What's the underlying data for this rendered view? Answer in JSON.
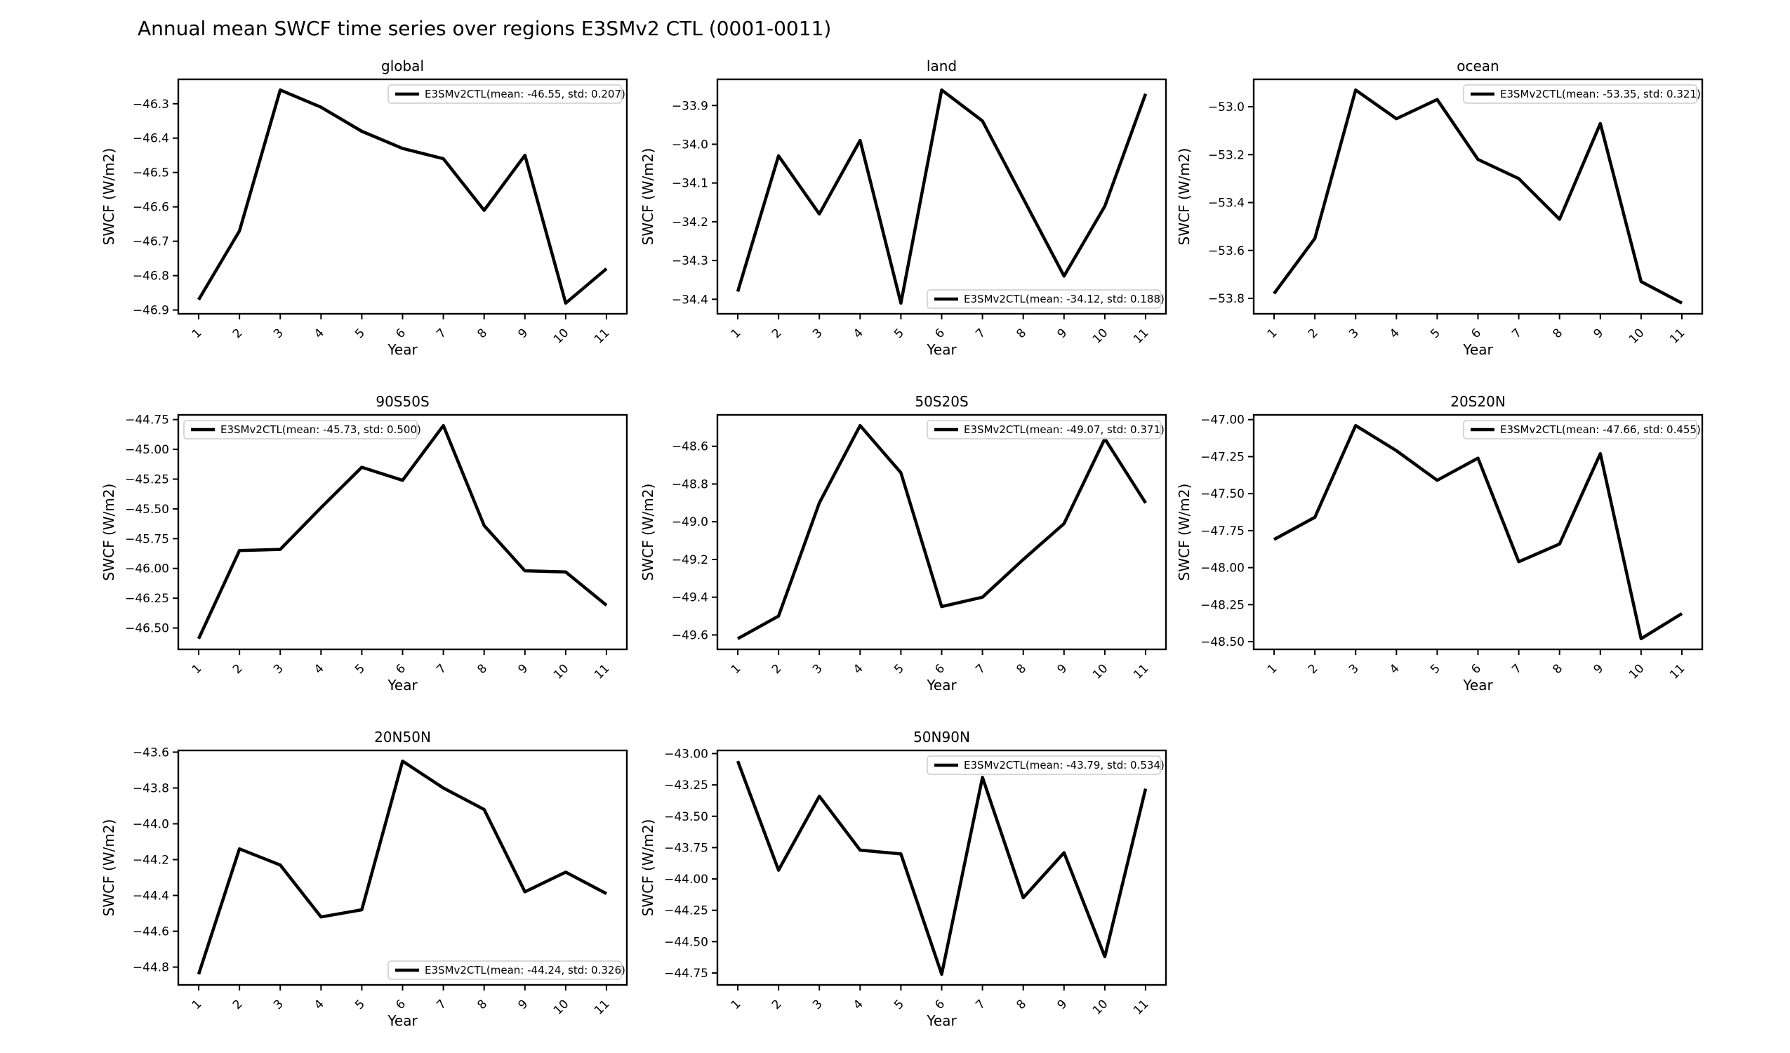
{
  "figure": {
    "suptitle": "Annual mean SWCF time series over regions E3SMv2 CTL (0001-0011)",
    "series_name": "E3SMv2CTL",
    "line_color": "#000000",
    "axis_color": "#000000",
    "tick_label_color": "#000000",
    "legend_border_color": "#cccccc",
    "legend_background": "#ffffff",
    "background_color": "#ffffff"
  },
  "chart_data": [
    {
      "type": "line",
      "title": "global",
      "xlabel": "Year",
      "ylabel": "SWCF (W/m2)",
      "x": [
        1,
        2,
        3,
        4,
        5,
        6,
        7,
        8,
        9,
        10,
        11
      ],
      "xtick_labels": [
        "1",
        "2",
        "3",
        "4",
        "5",
        "6",
        "7",
        "8",
        "9",
        "10",
        "11"
      ],
      "values": [
        -46.87,
        -46.67,
        -46.26,
        -46.31,
        -46.38,
        -46.43,
        -46.46,
        -46.61,
        -46.45,
        -46.88,
        -46.78
      ],
      "mean": -46.55,
      "std": 0.207,
      "legend": {
        "label": "E3SMv2CTL(mean: -46.55, std: 0.207)",
        "position": "top-right"
      },
      "ytick_values": [
        -46.9,
        -46.8,
        -46.7,
        -46.6,
        -46.5,
        -46.4,
        -46.3
      ],
      "ytick_labels": [
        "−46.9",
        "−46.8",
        "−46.7",
        "−46.6",
        "−46.5",
        "−46.4",
        "−46.3"
      ],
      "grid": {
        "row": 0,
        "col": 0
      }
    },
    {
      "type": "line",
      "title": "land",
      "xlabel": "Year",
      "ylabel": "SWCF (W/m2)",
      "x": [
        1,
        2,
        3,
        4,
        5,
        6,
        7,
        8,
        9,
        10,
        11
      ],
      "xtick_labels": [
        "1",
        "2",
        "3",
        "4",
        "5",
        "6",
        "7",
        "8",
        "9",
        "10",
        "11"
      ],
      "values": [
        -34.38,
        -34.03,
        -34.18,
        -33.99,
        -34.41,
        -33.86,
        -33.94,
        -34.14,
        -34.34,
        -34.16,
        -33.87
      ],
      "mean": -34.12,
      "std": 0.188,
      "legend": {
        "label": "E3SMv2CTL(mean: -34.12, std: 0.188)",
        "position": "bottom-right"
      },
      "ytick_values": [
        -34.4,
        -34.3,
        -34.2,
        -34.1,
        -34.0,
        -33.9
      ],
      "ytick_labels": [
        "−34.4",
        "−34.3",
        "−34.2",
        "−34.1",
        "−34.0",
        "−33.9"
      ],
      "grid": {
        "row": 0,
        "col": 1
      }
    },
    {
      "type": "line",
      "title": "ocean",
      "xlabel": "Year",
      "ylabel": "SWCF (W/m2)",
      "x": [
        1,
        2,
        3,
        4,
        5,
        6,
        7,
        8,
        9,
        10,
        11
      ],
      "xtick_labels": [
        "1",
        "2",
        "3",
        "4",
        "5",
        "6",
        "7",
        "8",
        "9",
        "10",
        "11"
      ],
      "values": [
        -53.78,
        -53.55,
        -52.93,
        -53.05,
        -52.97,
        -53.22,
        -53.3,
        -53.47,
        -53.07,
        -53.73,
        -53.82
      ],
      "mean": -53.35,
      "std": 0.321,
      "legend": {
        "label": "E3SMv2CTL(mean: -53.35, std: 0.321)",
        "position": "top-right"
      },
      "ytick_values": [
        -53.8,
        -53.6,
        -53.4,
        -53.2,
        -53.0
      ],
      "ytick_labels": [
        "−53.8",
        "−53.6",
        "−53.4",
        "−53.2",
        "−53.0"
      ],
      "grid": {
        "row": 0,
        "col": 2
      }
    },
    {
      "type": "line",
      "title": "90S50S",
      "xlabel": "Year",
      "ylabel": "SWCF (W/m2)",
      "x": [
        1,
        2,
        3,
        4,
        5,
        6,
        7,
        8,
        9,
        10,
        11
      ],
      "xtick_labels": [
        "1",
        "2",
        "3",
        "4",
        "5",
        "6",
        "7",
        "8",
        "9",
        "10",
        "11"
      ],
      "values": [
        -46.59,
        -45.85,
        -45.84,
        -45.49,
        -45.15,
        -45.26,
        -44.8,
        -45.64,
        -46.02,
        -46.03,
        -46.31
      ],
      "mean": -45.73,
      "std": 0.5,
      "legend": {
        "label": "E3SMv2CTL(mean: -45.73, std: 0.500)",
        "position": "top-left"
      },
      "ytick_values": [
        -46.5,
        -46.25,
        -46.0,
        -45.75,
        -45.5,
        -45.25,
        -45.0,
        -44.75
      ],
      "ytick_labels": [
        "−46.50",
        "−46.25",
        "−46.00",
        "−45.75",
        "−45.50",
        "−45.25",
        "−45.00",
        "−44.75"
      ],
      "grid": {
        "row": 1,
        "col": 0
      }
    },
    {
      "type": "line",
      "title": "50S20S",
      "xlabel": "Year",
      "ylabel": "SWCF (W/m2)",
      "x": [
        1,
        2,
        3,
        4,
        5,
        6,
        7,
        8,
        9,
        10,
        11
      ],
      "xtick_labels": [
        "1",
        "2",
        "3",
        "4",
        "5",
        "6",
        "7",
        "8",
        "9",
        "10",
        "11"
      ],
      "values": [
        -49.62,
        -49.5,
        -48.9,
        -48.49,
        -48.74,
        -49.45,
        -49.4,
        -49.2,
        -49.01,
        -48.56,
        -48.9
      ],
      "mean": -49.07,
      "std": 0.371,
      "legend": {
        "label": "E3SMv2CTL(mean: -49.07, std: 0.371)",
        "position": "top-right"
      },
      "ytick_values": [
        -49.6,
        -49.4,
        -49.2,
        -49.0,
        -48.8,
        -48.6
      ],
      "ytick_labels": [
        "−49.6",
        "−49.4",
        "−49.2",
        "−49.0",
        "−48.8",
        "−48.6"
      ],
      "grid": {
        "row": 1,
        "col": 1
      }
    },
    {
      "type": "line",
      "title": "20S20N",
      "xlabel": "Year",
      "ylabel": "SWCF (W/m2)",
      "x": [
        1,
        2,
        3,
        4,
        5,
        6,
        7,
        8,
        9,
        10,
        11
      ],
      "xtick_labels": [
        "1",
        "2",
        "3",
        "4",
        "5",
        "6",
        "7",
        "8",
        "9",
        "10",
        "11"
      ],
      "values": [
        -47.81,
        -47.66,
        -47.04,
        -47.21,
        -47.41,
        -47.26,
        -47.96,
        -47.84,
        -47.23,
        -48.48,
        -48.31
      ],
      "mean": -47.66,
      "std": 0.455,
      "legend": {
        "label": "E3SMv2CTL(mean: -47.66, std: 0.455)",
        "position": "top-right"
      },
      "ytick_values": [
        -48.5,
        -48.25,
        -48.0,
        -47.75,
        -47.5,
        -47.25,
        -47.0
      ],
      "ytick_labels": [
        "−48.50",
        "−48.25",
        "−48.00",
        "−47.75",
        "−47.50",
        "−47.25",
        "−47.00"
      ],
      "grid": {
        "row": 1,
        "col": 2
      }
    },
    {
      "type": "line",
      "title": "20N50N",
      "xlabel": "Year",
      "ylabel": "SWCF (W/m2)",
      "x": [
        1,
        2,
        3,
        4,
        5,
        6,
        7,
        8,
        9,
        10,
        11
      ],
      "xtick_labels": [
        "1",
        "2",
        "3",
        "4",
        "5",
        "6",
        "7",
        "8",
        "9",
        "10",
        "11"
      ],
      "values": [
        -44.84,
        -44.14,
        -44.23,
        -44.52,
        -44.48,
        -43.65,
        -43.8,
        -43.92,
        -44.38,
        -44.27,
        -44.39
      ],
      "mean": -44.24,
      "std": 0.326,
      "legend": {
        "label": "E3SMv2CTL(mean: -44.24, std: 0.326)",
        "position": "bottom-right"
      },
      "ytick_values": [
        -44.8,
        -44.6,
        -44.4,
        -44.2,
        -44.0,
        -43.8,
        -43.6
      ],
      "ytick_labels": [
        "−44.8",
        "−44.6",
        "−44.4",
        "−44.2",
        "−44.0",
        "−43.8",
        "−43.6"
      ],
      "grid": {
        "row": 2,
        "col": 0
      }
    },
    {
      "type": "line",
      "title": "50N90N",
      "xlabel": "Year",
      "ylabel": "SWCF (W/m2)",
      "x": [
        1,
        2,
        3,
        4,
        5,
        6,
        7,
        8,
        9,
        10,
        11
      ],
      "xtick_labels": [
        "1",
        "2",
        "3",
        "4",
        "5",
        "6",
        "7",
        "8",
        "9",
        "10",
        "11"
      ],
      "values": [
        -43.06,
        -43.93,
        -43.34,
        -43.77,
        -43.8,
        -44.76,
        -43.19,
        -44.15,
        -43.79,
        -44.62,
        -43.28
      ],
      "mean": -43.79,
      "std": 0.534,
      "legend": {
        "label": "E3SMv2CTL(mean: -43.79, std: 0.534)",
        "position": "top-right"
      },
      "ytick_values": [
        -44.75,
        -44.5,
        -44.25,
        -44.0,
        -43.75,
        -43.5,
        -43.25,
        -43.0
      ],
      "ytick_labels": [
        "−44.75",
        "−44.50",
        "−44.25",
        "−44.00",
        "−43.75",
        "−43.50",
        "−43.25",
        "−43.00"
      ],
      "grid": {
        "row": 2,
        "col": 1
      }
    }
  ]
}
